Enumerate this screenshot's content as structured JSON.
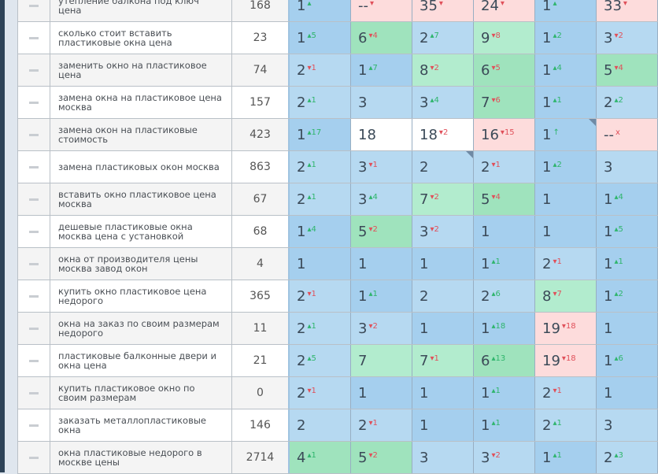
{
  "colors": {
    "a": "#a5cfee",
    "l": "#b6d9f1",
    "g": "#9fe3bd",
    "m": "#b2ecce",
    "w": "#ffffff",
    "p": "#fddcdc"
  },
  "rows": [
    {
      "keyword": "утепление балкона под ключ цена",
      "freq": "168",
      "cells": [
        [
          "1",
          "",
          "up",
          "a"
        ],
        [
          "--",
          "",
          "down",
          "p"
        ],
        [
          "35",
          "",
          "down",
          "p"
        ],
        [
          "24",
          "",
          "down",
          "p"
        ],
        [
          "1",
          "",
          "up",
          "a"
        ],
        [
          "33",
          "",
          "down",
          "p"
        ]
      ]
    },
    {
      "keyword": "сколько стоит вставить пластиковые окна цена",
      "freq": "23",
      "cells": [
        [
          "1",
          "5",
          "up",
          "a"
        ],
        [
          "6",
          "4",
          "down",
          "g"
        ],
        [
          "2",
          "7",
          "up",
          "l"
        ],
        [
          "9",
          "8",
          "down",
          "m"
        ],
        [
          "1",
          "2",
          "up",
          "a"
        ],
        [
          "3",
          "2",
          "down",
          "l"
        ]
      ]
    },
    {
      "keyword": "заменить окно на пластиковое цена",
      "freq": "74",
      "cells": [
        [
          "2",
          "1",
          "down",
          "l"
        ],
        [
          "1",
          "7",
          "up",
          "a"
        ],
        [
          "8",
          "2",
          "down",
          "m"
        ],
        [
          "6",
          "5",
          "down",
          "g"
        ],
        [
          "1",
          "4",
          "up",
          "a"
        ],
        [
          "5",
          "4",
          "down",
          "g"
        ]
      ]
    },
    {
      "keyword": "замена окна на пластиковое цена москва",
      "freq": "157",
      "cells": [
        [
          "2",
          "1",
          "up",
          "l"
        ],
        [
          "3",
          "",
          "",
          "l"
        ],
        [
          "3",
          "4",
          "up",
          "l"
        ],
        [
          "7",
          "6",
          "down",
          "g"
        ],
        [
          "1",
          "1",
          "up",
          "a"
        ],
        [
          "2",
          "2",
          "up",
          "l"
        ]
      ]
    },
    {
      "keyword": "замена окон на пластиковые стоимость",
      "freq": "423",
      "cells": [
        [
          "1",
          "17",
          "up",
          "a"
        ],
        [
          "18",
          "",
          "",
          "w"
        ],
        [
          "18",
          "2",
          "down",
          "w"
        ],
        [
          "16",
          "15",
          "down",
          "p"
        ],
        [
          "1",
          "↑",
          "up",
          "a",
          true
        ],
        [
          "--",
          "x",
          "down",
          "p"
        ]
      ]
    },
    {
      "keyword": "замена пластиковых окон москва",
      "freq": "863",
      "cells": [
        [
          "2",
          "1",
          "up",
          "l"
        ],
        [
          "3",
          "1",
          "down",
          "l"
        ],
        [
          "2",
          "",
          "",
          "l",
          true
        ],
        [
          "2",
          "1",
          "down",
          "l"
        ],
        [
          "1",
          "2",
          "up",
          "a"
        ],
        [
          "3",
          "",
          "",
          "l"
        ]
      ]
    },
    {
      "keyword": "вставить окно пластиковое цена москва",
      "freq": "67",
      "cells": [
        [
          "2",
          "1",
          "up",
          "l"
        ],
        [
          "3",
          "4",
          "up",
          "l"
        ],
        [
          "7",
          "2",
          "down",
          "m"
        ],
        [
          "5",
          "4",
          "down",
          "g"
        ],
        [
          "1",
          "",
          "",
          "a"
        ],
        [
          "1",
          "4",
          "up",
          "a"
        ]
      ]
    },
    {
      "keyword": "дешевые пластиковые окна москва цена с установкой",
      "freq": "68",
      "cells": [
        [
          "1",
          "4",
          "up",
          "a"
        ],
        [
          "5",
          "2",
          "down",
          "g"
        ],
        [
          "3",
          "2",
          "down",
          "l"
        ],
        [
          "1",
          "",
          "",
          "a"
        ],
        [
          "1",
          "",
          "",
          "a"
        ],
        [
          "1",
          "5",
          "up",
          "a"
        ]
      ]
    },
    {
      "keyword": "окна от производителя цены москва завод окон",
      "freq": "4",
      "cells": [
        [
          "1",
          "",
          "",
          "a"
        ],
        [
          "1",
          "",
          "",
          "a"
        ],
        [
          "1",
          "",
          "",
          "a"
        ],
        [
          "1",
          "1",
          "up",
          "a"
        ],
        [
          "2",
          "1",
          "down",
          "l"
        ],
        [
          "1",
          "1",
          "up",
          "a"
        ]
      ]
    },
    {
      "keyword": "купить окно пластиковое цена недорого",
      "freq": "365",
      "cells": [
        [
          "2",
          "1",
          "down",
          "l"
        ],
        [
          "1",
          "1",
          "up",
          "a"
        ],
        [
          "2",
          "",
          "",
          "l"
        ],
        [
          "2",
          "6",
          "up",
          "l"
        ],
        [
          "8",
          "7",
          "down",
          "m"
        ],
        [
          "1",
          "2",
          "up",
          "a"
        ]
      ]
    },
    {
      "keyword": "окна на заказ по своим размерам недорого",
      "freq": "11",
      "cells": [
        [
          "2",
          "1",
          "up",
          "l"
        ],
        [
          "3",
          "2",
          "down",
          "l"
        ],
        [
          "1",
          "",
          "",
          "a"
        ],
        [
          "1",
          "18",
          "up",
          "a"
        ],
        [
          "19",
          "18",
          "down",
          "p"
        ],
        [
          "1",
          "",
          "",
          "a"
        ]
      ]
    },
    {
      "keyword": "пластиковые балконные двери и окна цена",
      "freq": "21",
      "cells": [
        [
          "2",
          "5",
          "up",
          "l"
        ],
        [
          "7",
          "",
          "",
          "m"
        ],
        [
          "7",
          "1",
          "down",
          "m"
        ],
        [
          "6",
          "13",
          "up",
          "g"
        ],
        [
          "19",
          "18",
          "down",
          "p"
        ],
        [
          "1",
          "6",
          "up",
          "a"
        ]
      ]
    },
    {
      "keyword": "купить пластиковое окно по своим размерам",
      "freq": "0",
      "cells": [
        [
          "2",
          "1",
          "down",
          "l"
        ],
        [
          "1",
          "",
          "",
          "a"
        ],
        [
          "1",
          "",
          "",
          "a"
        ],
        [
          "1",
          "1",
          "up",
          "a"
        ],
        [
          "2",
          "1",
          "down",
          "l"
        ],
        [
          "1",
          "",
          "",
          "a"
        ]
      ]
    },
    {
      "keyword": "заказать металлопластиковые окна",
      "freq": "146",
      "cells": [
        [
          "2",
          "",
          "",
          "l"
        ],
        [
          "2",
          "1",
          "down",
          "l"
        ],
        [
          "1",
          "",
          "",
          "a"
        ],
        [
          "1",
          "1",
          "up",
          "a"
        ],
        [
          "2",
          "1",
          "up",
          "l"
        ],
        [
          "3",
          "",
          "",
          "l"
        ]
      ]
    },
    {
      "keyword": "окна пластиковые недорого в москве цены",
      "freq": "2714",
      "cells": [
        [
          "4",
          "1",
          "up",
          "g"
        ],
        [
          "5",
          "2",
          "down",
          "g"
        ],
        [
          "3",
          "",
          "",
          "l"
        ],
        [
          "3",
          "2",
          "down",
          "l"
        ],
        [
          "1",
          "1",
          "up",
          "a"
        ],
        [
          "2",
          "3",
          "up",
          "l"
        ]
      ]
    }
  ]
}
